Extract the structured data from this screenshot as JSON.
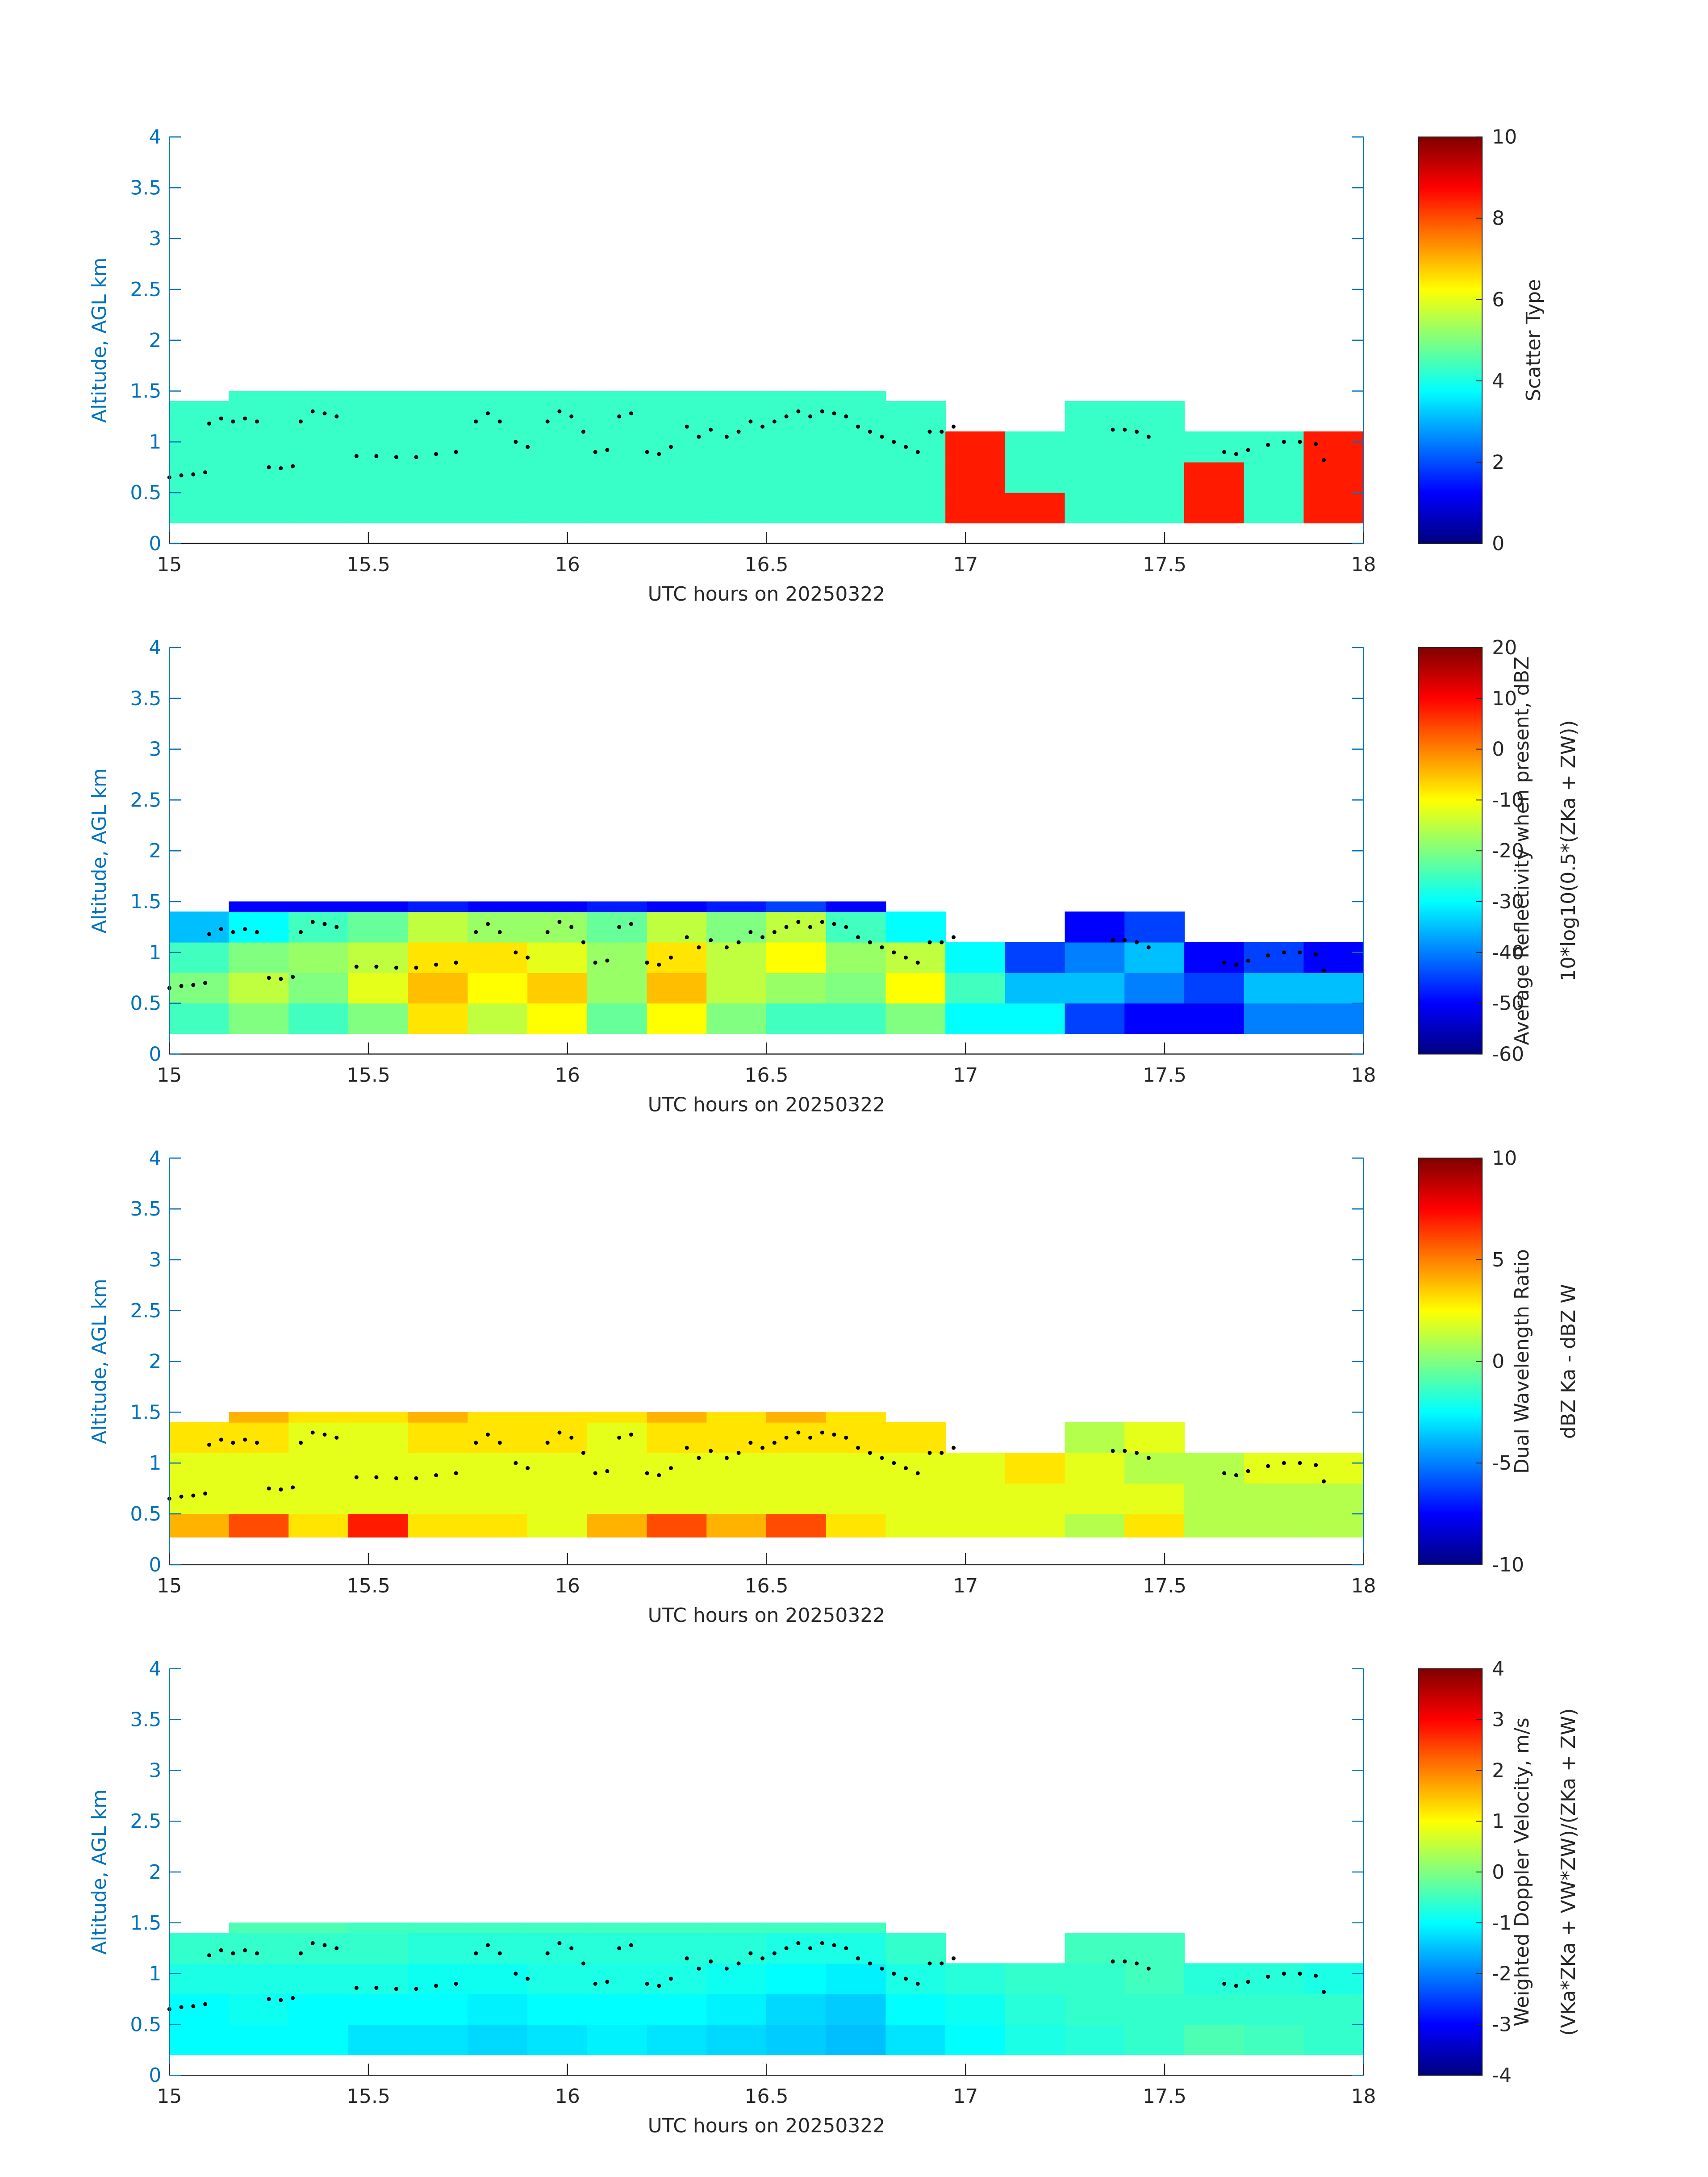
{
  "chart_data": [
    {
      "type": "heatmap",
      "colormap": "jet",
      "axis_color": "#0072BD",
      "xlabel": "UTC hours on 20250322",
      "ylabel": "Altitude, AGL km",
      "colorbar_label": [
        "Scatter Type"
      ],
      "xlim": [
        15,
        18
      ],
      "ylim": [
        0,
        4
      ],
      "clim": [
        0,
        10
      ],
      "xticks": [
        15,
        15.5,
        16,
        16.5,
        17,
        17.5,
        18
      ],
      "yticks": [
        0,
        0.5,
        1,
        1.5,
        2,
        2.5,
        3,
        3.5,
        4
      ],
      "cticks": [
        0,
        2,
        4,
        6,
        8,
        10
      ],
      "x_edges": [
        15,
        15.15,
        15.3,
        15.45,
        15.6,
        15.75,
        15.9,
        16.05,
        16.2,
        16.35,
        16.5,
        16.65,
        16.8,
        16.95,
        17.1,
        17.25,
        17.4,
        17.55,
        17.7,
        17.85,
        18
      ],
      "y_edges": [
        0.2,
        0.5,
        0.8,
        1.1,
        1.4,
        1.5
      ],
      "z": [
        [
          4.3,
          4.3,
          4.3,
          4.3,
          4.3,
          4.3,
          4.3,
          4.3,
          4.3,
          4.3,
          4.3,
          4.3,
          4.3,
          8.5,
          8.5,
          4.3,
          4.3,
          8.5,
          4.3,
          8.5
        ],
        [
          4.3,
          4.3,
          4.3,
          4.3,
          4.3,
          4.3,
          4.3,
          4.3,
          4.3,
          4.3,
          4.3,
          4.3,
          4.3,
          8.5,
          4.3,
          4.3,
          4.3,
          8.5,
          4.3,
          8.5
        ],
        [
          4.3,
          4.3,
          4.3,
          4.3,
          4.3,
          4.3,
          4.3,
          4.3,
          4.3,
          4.3,
          4.3,
          4.3,
          4.3,
          8.5,
          4.3,
          4.3,
          4.3,
          4.3,
          4.3,
          8.5
        ],
        [
          4.3,
          4.3,
          4.3,
          4.3,
          4.3,
          4.3,
          4.3,
          4.3,
          4.3,
          4.3,
          4.3,
          4.3,
          4.3,
          null,
          null,
          4.3,
          4.3,
          null,
          null,
          null
        ],
        [
          null,
          4.3,
          4.3,
          4.3,
          4.3,
          4.3,
          4.3,
          4.3,
          4.3,
          4.3,
          4.3,
          4.3,
          null,
          null,
          null,
          null,
          null,
          null,
          null,
          null
        ]
      ]
    },
    {
      "type": "heatmap",
      "colormap": "jet",
      "axis_color": "#0072BD",
      "xlabel": "UTC hours on 20250322",
      "ylabel": "Altitude, AGL km",
      "colorbar_label": [
        "Average Reflectivity when present, dBZ",
        "10*log10(0.5*(ZKa + ZW))"
      ],
      "xlim": [
        15,
        18
      ],
      "ylim": [
        0,
        4
      ],
      "clim": [
        -60,
        20
      ],
      "xticks": [
        15,
        15.5,
        16,
        16.5,
        17,
        17.5,
        18
      ],
      "yticks": [
        0,
        0.5,
        1,
        1.5,
        2,
        2.5,
        3,
        3.5,
        4
      ],
      "cticks": [
        -60,
        -50,
        -40,
        -30,
        -20,
        -10,
        0,
        10,
        20
      ],
      "x_edges": [
        15,
        15.15,
        15.3,
        15.45,
        15.6,
        15.75,
        15.9,
        16.05,
        16.2,
        16.35,
        16.5,
        16.65,
        16.8,
        16.95,
        17.1,
        17.25,
        17.4,
        17.55,
        17.7,
        17.85,
        18
      ],
      "y_edges": [
        0.2,
        0.5,
        0.8,
        1.1,
        1.4,
        1.5
      ],
      "z": [
        [
          -25,
          -20,
          -25,
          -20,
          -8,
          -15,
          -10,
          -22,
          -10,
          -20,
          -25,
          -25,
          -20,
          -30,
          -30,
          -45,
          -50,
          -50,
          -40,
          -40
        ],
        [
          -20,
          -15,
          -20,
          -12,
          -5,
          -10,
          -6,
          -18,
          -5,
          -15,
          -18,
          -20,
          -10,
          -25,
          -35,
          -35,
          -40,
          -45,
          -35,
          -35
        ],
        [
          -25,
          -20,
          -18,
          -15,
          -8,
          -8,
          -12,
          -18,
          -8,
          -15,
          -10,
          -18,
          -15,
          -30,
          -45,
          -40,
          -35,
          -50,
          -45,
          -50
        ],
        [
          -35,
          -30,
          -25,
          -22,
          -15,
          -18,
          -18,
          -22,
          -15,
          -20,
          -15,
          -25,
          -30,
          null,
          null,
          -50,
          -45,
          null,
          null,
          null
        ],
        [
          null,
          -50,
          -50,
          -50,
          -48,
          -50,
          -50,
          -48,
          -50,
          -48,
          -45,
          -50,
          null,
          null,
          null,
          null,
          null,
          null,
          null,
          null
        ]
      ]
    },
    {
      "type": "heatmap",
      "colormap": "jet",
      "axis_color": "#0072BD",
      "xlabel": "UTC hours on 20250322",
      "ylabel": "Altitude, AGL km",
      "colorbar_label": [
        "Dual Wavelength Ratio",
        "dBZ Ka - dBZ W"
      ],
      "xlim": [
        15,
        18
      ],
      "ylim": [
        0,
        4
      ],
      "clim": [
        -10,
        10
      ],
      "xticks": [
        15,
        15.5,
        16,
        16.5,
        17,
        17.5,
        18
      ],
      "yticks": [
        0,
        0.5,
        1,
        1.5,
        2,
        2.5,
        3,
        3.5,
        4
      ],
      "cticks": [
        -10,
        -5,
        0,
        5,
        10
      ],
      "x_edges": [
        15,
        15.15,
        15.3,
        15.45,
        15.6,
        15.75,
        15.9,
        16.05,
        16.2,
        16.35,
        16.5,
        16.65,
        16.8,
        16.95,
        17.1,
        17.25,
        17.4,
        17.55,
        17.7,
        17.85,
        18
      ],
      "y_edges": [
        0.27,
        0.5,
        0.8,
        1.1,
        1.4,
        1.5
      ],
      "z": [
        [
          4,
          6,
          3,
          7,
          3,
          3,
          2,
          4,
          6,
          4,
          6,
          3,
          2,
          2,
          2,
          1,
          3,
          1,
          1,
          1
        ],
        [
          2,
          2,
          2,
          2,
          2,
          2,
          2,
          2,
          2,
          2,
          2,
          2,
          2,
          2,
          2,
          2,
          2,
          1,
          1,
          1
        ],
        [
          2,
          2,
          2,
          2,
          2,
          2,
          2,
          2,
          2,
          2,
          2,
          2,
          2,
          2,
          3,
          2,
          1,
          1,
          2,
          2
        ],
        [
          3,
          3,
          2,
          2,
          3,
          3,
          3,
          2,
          3,
          3,
          3,
          3,
          3,
          null,
          null,
          1,
          2,
          null,
          null,
          null
        ],
        [
          null,
          4,
          3,
          3,
          4,
          3,
          3,
          3,
          4,
          3,
          4,
          3,
          null,
          null,
          null,
          null,
          null,
          null,
          null,
          null
        ]
      ]
    },
    {
      "type": "heatmap",
      "colormap": "jet",
      "axis_color": "#0072BD",
      "xlabel": "UTC hours on 20250322",
      "ylabel": "Altitude, AGL km",
      "colorbar_label": [
        "Weighted Doppler Velocity, m/s",
        "(VKa*ZKa + VW*ZW)/(ZKa + ZW)"
      ],
      "xlim": [
        15,
        18
      ],
      "ylim": [
        0,
        4
      ],
      "clim": [
        -4,
        4
      ],
      "xticks": [
        15,
        15.5,
        16,
        16.5,
        17,
        17.5,
        18
      ],
      "yticks": [
        0,
        0.5,
        1,
        1.5,
        2,
        2.5,
        3,
        3.5,
        4
      ],
      "cticks": [
        -4,
        -3,
        -2,
        -1,
        0,
        1,
        2,
        3,
        4
      ],
      "x_edges": [
        15,
        15.15,
        15.3,
        15.45,
        15.6,
        15.75,
        15.9,
        16.05,
        16.2,
        16.35,
        16.5,
        16.65,
        16.8,
        16.95,
        17.1,
        17.25,
        17.4,
        17.55,
        17.7,
        17.85,
        18
      ],
      "y_edges": [
        0.2,
        0.5,
        0.8,
        1.1,
        1.4,
        1.5
      ],
      "z": [
        [
          -1,
          -1,
          -1,
          -1.2,
          -1.2,
          -1.3,
          -1.2,
          -1.1,
          -1.2,
          -1.3,
          -1.4,
          -1.5,
          -1.2,
          -1,
          -0.8,
          -0.7,
          -0.6,
          -0.4,
          -0.5,
          -0.6
        ],
        [
          -1,
          -0.9,
          -1,
          -1,
          -1,
          -1.1,
          -1,
          -1,
          -1,
          -1.1,
          -1.3,
          -1.4,
          -1,
          -0.9,
          -0.7,
          -0.6,
          -0.6,
          -0.6,
          -0.6,
          -0.6
        ],
        [
          -0.8,
          -0.8,
          -0.8,
          -0.8,
          -0.9,
          -0.9,
          -0.8,
          -0.8,
          -0.8,
          -0.9,
          -1,
          -1.1,
          -0.8,
          -0.7,
          -0.6,
          -0.6,
          -0.5,
          -0.7,
          -0.7,
          -0.8
        ],
        [
          -0.6,
          -0.6,
          -0.6,
          -0.6,
          -0.7,
          -0.7,
          -0.7,
          -0.7,
          -0.7,
          -0.7,
          -0.8,
          -0.8,
          -0.6,
          null,
          null,
          -0.5,
          -0.5,
          null,
          null,
          null
        ],
        [
          null,
          -0.4,
          -0.4,
          -0.5,
          -0.5,
          -0.5,
          -0.5,
          -0.5,
          -0.5,
          -0.5,
          -0.5,
          -0.5,
          null,
          null,
          null,
          null,
          null,
          null,
          null,
          null
        ]
      ]
    }
  ],
  "layer_points": {
    "color": "#000000",
    "x": [
      15.0,
      15.03,
      15.06,
      15.09,
      15.1,
      15.13,
      15.16,
      15.19,
      15.22,
      15.25,
      15.28,
      15.31,
      15.33,
      15.36,
      15.39,
      15.42,
      15.47,
      15.52,
      15.57,
      15.62,
      15.67,
      15.72,
      15.77,
      15.8,
      15.83,
      15.87,
      15.9,
      15.95,
      15.98,
      16.01,
      16.04,
      16.07,
      16.1,
      16.13,
      16.16,
      16.2,
      16.23,
      16.26,
      16.3,
      16.33,
      16.36,
      16.4,
      16.43,
      16.46,
      16.49,
      16.52,
      16.55,
      16.58,
      16.61,
      16.64,
      16.67,
      16.7,
      16.73,
      16.76,
      16.79,
      16.82,
      16.85,
      16.88,
      16.91,
      16.94,
      16.97,
      17.37,
      17.4,
      17.43,
      17.46,
      17.65,
      17.68,
      17.71,
      17.76,
      17.8,
      17.84,
      17.88,
      17.9
    ],
    "y": [
      0.65,
      0.67,
      0.68,
      0.7,
      1.18,
      1.23,
      1.2,
      1.23,
      1.2,
      0.75,
      0.74,
      0.76,
      1.2,
      1.3,
      1.28,
      1.25,
      0.86,
      0.86,
      0.85,
      0.85,
      0.88,
      0.9,
      1.2,
      1.28,
      1.2,
      1.0,
      0.95,
      1.2,
      1.3,
      1.25,
      1.1,
      0.9,
      0.92,
      1.25,
      1.28,
      0.9,
      0.88,
      0.95,
      1.15,
      1.05,
      1.12,
      1.05,
      1.1,
      1.2,
      1.15,
      1.2,
      1.25,
      1.3,
      1.25,
      1.3,
      1.28,
      1.25,
      1.15,
      1.1,
      1.05,
      1.0,
      0.95,
      0.9,
      1.1,
      1.1,
      1.15,
      1.12,
      1.12,
      1.1,
      1.05,
      0.9,
      0.88,
      0.92,
      0.97,
      1.0,
      1.0,
      0.98,
      0.82
    ]
  }
}
